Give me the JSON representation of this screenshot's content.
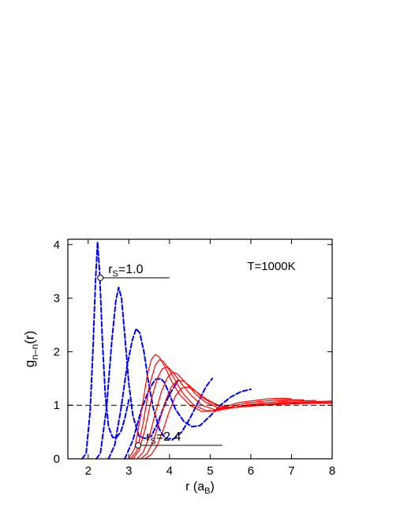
{
  "chart_data": {
    "type": "line",
    "xlabel": "r (a_B)",
    "xlabel_main": "r (a",
    "xlabel_sub": "B",
    "xlabel_close": ")",
    "ylabel": "g_n-n(r)",
    "ylabel_main": "g",
    "ylabel_sub": "n–n",
    "ylabel_tail": "(r)",
    "xlim": [
      1.5,
      8
    ],
    "ylim": [
      0,
      4.1
    ],
    "x_ticks": [
      2,
      3,
      4,
      5,
      6,
      7,
      8
    ],
    "y_ticks": [
      0,
      1,
      2,
      3,
      4
    ],
    "x_tick_labels": [
      "2",
      "3",
      "4",
      "5",
      "6",
      "7",
      "8"
    ],
    "y_tick_labels": [
      "0",
      "1",
      "2",
      "3",
      "4"
    ],
    "grid": false,
    "reference_line": {
      "y": 1,
      "style": "dashed",
      "color": "#000000"
    },
    "annotations": [
      {
        "text_main": "r",
        "text_sub": "S",
        "text_rest": "=1.0",
        "marker": [
          2.3,
          3.38
        ],
        "line_to_x": 4.0
      },
      {
        "text_main": "r",
        "text_sub": "S",
        "text_rest": "=2.4",
        "marker": [
          3.23,
          0.25
        ],
        "line_to_x": 5.3
      },
      {
        "text": "T=1000K"
      }
    ],
    "series": [
      {
        "style": "dashed",
        "color": "#0000ff",
        "x": [
          1.85,
          1.95,
          2.05,
          2.12,
          2.18,
          2.23,
          2.28,
          2.35,
          2.42,
          2.5,
          2.6,
          2.7,
          2.8,
          2.9,
          3.0
        ],
        "y": [
          0,
          0.1,
          0.9,
          2.1,
          3.3,
          4.05,
          3.5,
          2.2,
          1.2,
          0.6,
          0.4,
          0.4,
          0.5,
          0.75,
          1.1
        ]
      },
      {
        "style": "dashed",
        "color": "#0000ff",
        "x": [
          2.2,
          2.3,
          2.45,
          2.58,
          2.68,
          2.75,
          2.82,
          2.9,
          3.0,
          3.1,
          3.25,
          3.4,
          3.55,
          3.7,
          3.85,
          4.0,
          4.2
        ],
        "y": [
          0,
          0.1,
          0.95,
          2.2,
          2.95,
          3.2,
          3.0,
          2.3,
          1.4,
          0.8,
          0.42,
          0.38,
          0.42,
          0.65,
          0.95,
          1.2,
          1.45
        ]
      },
      {
        "style": "dashed",
        "color": "#0000ff",
        "x": [
          2.5,
          2.65,
          2.8,
          2.95,
          3.08,
          3.18,
          3.27,
          3.37,
          3.48,
          3.6,
          3.75,
          3.9,
          4.1,
          4.3,
          4.5,
          4.7,
          4.9,
          5.05
        ],
        "y": [
          0,
          0.25,
          0.9,
          1.7,
          2.2,
          2.43,
          2.35,
          2.0,
          1.45,
          0.95,
          0.55,
          0.38,
          0.37,
          0.5,
          0.75,
          1.05,
          1.35,
          1.5
        ]
      },
      {
        "style": "dashed",
        "color": "#0000ff",
        "x": [
          2.9,
          3.1,
          3.3,
          3.5,
          3.65,
          3.78,
          3.88,
          4.0,
          4.15,
          4.35,
          4.55,
          4.75,
          5.0,
          5.25,
          5.5,
          5.75,
          6.0
        ],
        "y": [
          0,
          0.35,
          0.9,
          1.3,
          1.48,
          1.5,
          1.42,
          1.2,
          0.92,
          0.7,
          0.6,
          0.62,
          0.8,
          1.0,
          1.15,
          1.25,
          1.3
        ]
      },
      {
        "style": "solid",
        "color": "#ff0000",
        "x": [
          3.0,
          3.15,
          3.3,
          3.45,
          3.55,
          3.65,
          3.75,
          3.9,
          4.05,
          4.25,
          4.5,
          4.8,
          5.1,
          5.4,
          5.7,
          6.0,
          6.4,
          6.8,
          7.0
        ],
        "y": [
          0,
          0.2,
          0.85,
          1.55,
          1.85,
          1.95,
          1.9,
          1.7,
          1.45,
          1.2,
          1.0,
          0.88,
          0.9,
          0.98,
          1.05,
          1.08,
          1.12,
          1.13,
          1.12
        ]
      },
      {
        "style": "solid",
        "color": "#ff0000",
        "x": [
          3.05,
          3.2,
          3.35,
          3.5,
          3.65,
          3.75,
          3.85,
          4.0,
          4.15,
          4.35,
          4.6,
          4.9,
          5.2,
          5.5,
          5.8,
          6.1,
          6.5,
          6.9,
          7.3
        ],
        "y": [
          0,
          0.15,
          0.65,
          1.35,
          1.75,
          1.85,
          1.82,
          1.65,
          1.45,
          1.2,
          1.0,
          0.9,
          0.9,
          0.97,
          1.03,
          1.06,
          1.09,
          1.1,
          1.1
        ]
      },
      {
        "style": "solid",
        "color": "#ff0000",
        "x": [
          3.1,
          3.25,
          3.4,
          3.55,
          3.7,
          3.82,
          3.95,
          4.1,
          4.3,
          4.55,
          4.8,
          5.1,
          5.4,
          5.7,
          6.0,
          6.4,
          6.8,
          7.2,
          7.6
        ],
        "y": [
          0,
          0.15,
          0.55,
          1.1,
          1.5,
          1.68,
          1.72,
          1.6,
          1.4,
          1.17,
          1.0,
          0.92,
          0.93,
          0.98,
          1.02,
          1.05,
          1.07,
          1.08,
          1.09
        ]
      },
      {
        "style": "solid",
        "color": "#ff0000",
        "x": [
          3.2,
          3.35,
          3.5,
          3.65,
          3.8,
          3.95,
          4.08,
          4.2,
          4.4,
          4.65,
          4.9,
          5.2,
          5.5,
          5.8,
          6.1,
          6.5,
          6.9,
          7.3,
          7.7,
          8.0
        ],
        "y": [
          0,
          0.12,
          0.4,
          0.85,
          1.25,
          1.52,
          1.62,
          1.58,
          1.42,
          1.2,
          1.05,
          0.95,
          0.95,
          0.98,
          1.01,
          1.03,
          1.05,
          1.06,
          1.07,
          1.08
        ]
      },
      {
        "style": "solid",
        "color": "#ff0000",
        "x": [
          3.3,
          3.45,
          3.6,
          3.75,
          3.9,
          4.05,
          4.2,
          4.35,
          4.55,
          4.8,
          5.05,
          5.35,
          5.65,
          5.95,
          6.3,
          6.7,
          7.1,
          7.5,
          8.0
        ],
        "y": [
          0,
          0.1,
          0.32,
          0.7,
          1.08,
          1.35,
          1.47,
          1.45,
          1.33,
          1.15,
          1.03,
          0.96,
          0.96,
          0.99,
          1.01,
          1.03,
          1.04,
          1.05,
          1.06
        ]
      },
      {
        "style": "solid",
        "color": "#ff0000",
        "x": [
          3.4,
          3.55,
          3.7,
          3.85,
          4.0,
          4.15,
          4.3,
          4.45,
          4.65,
          4.9,
          5.2,
          5.5,
          5.8,
          6.1,
          6.5,
          6.9,
          7.3,
          7.7,
          8.0
        ],
        "y": [
          0,
          0.08,
          0.25,
          0.55,
          0.9,
          1.18,
          1.32,
          1.34,
          1.26,
          1.12,
          1.0,
          0.96,
          0.97,
          0.99,
          1.01,
          1.02,
          1.03,
          1.04,
          1.04
        ]
      }
    ]
  }
}
